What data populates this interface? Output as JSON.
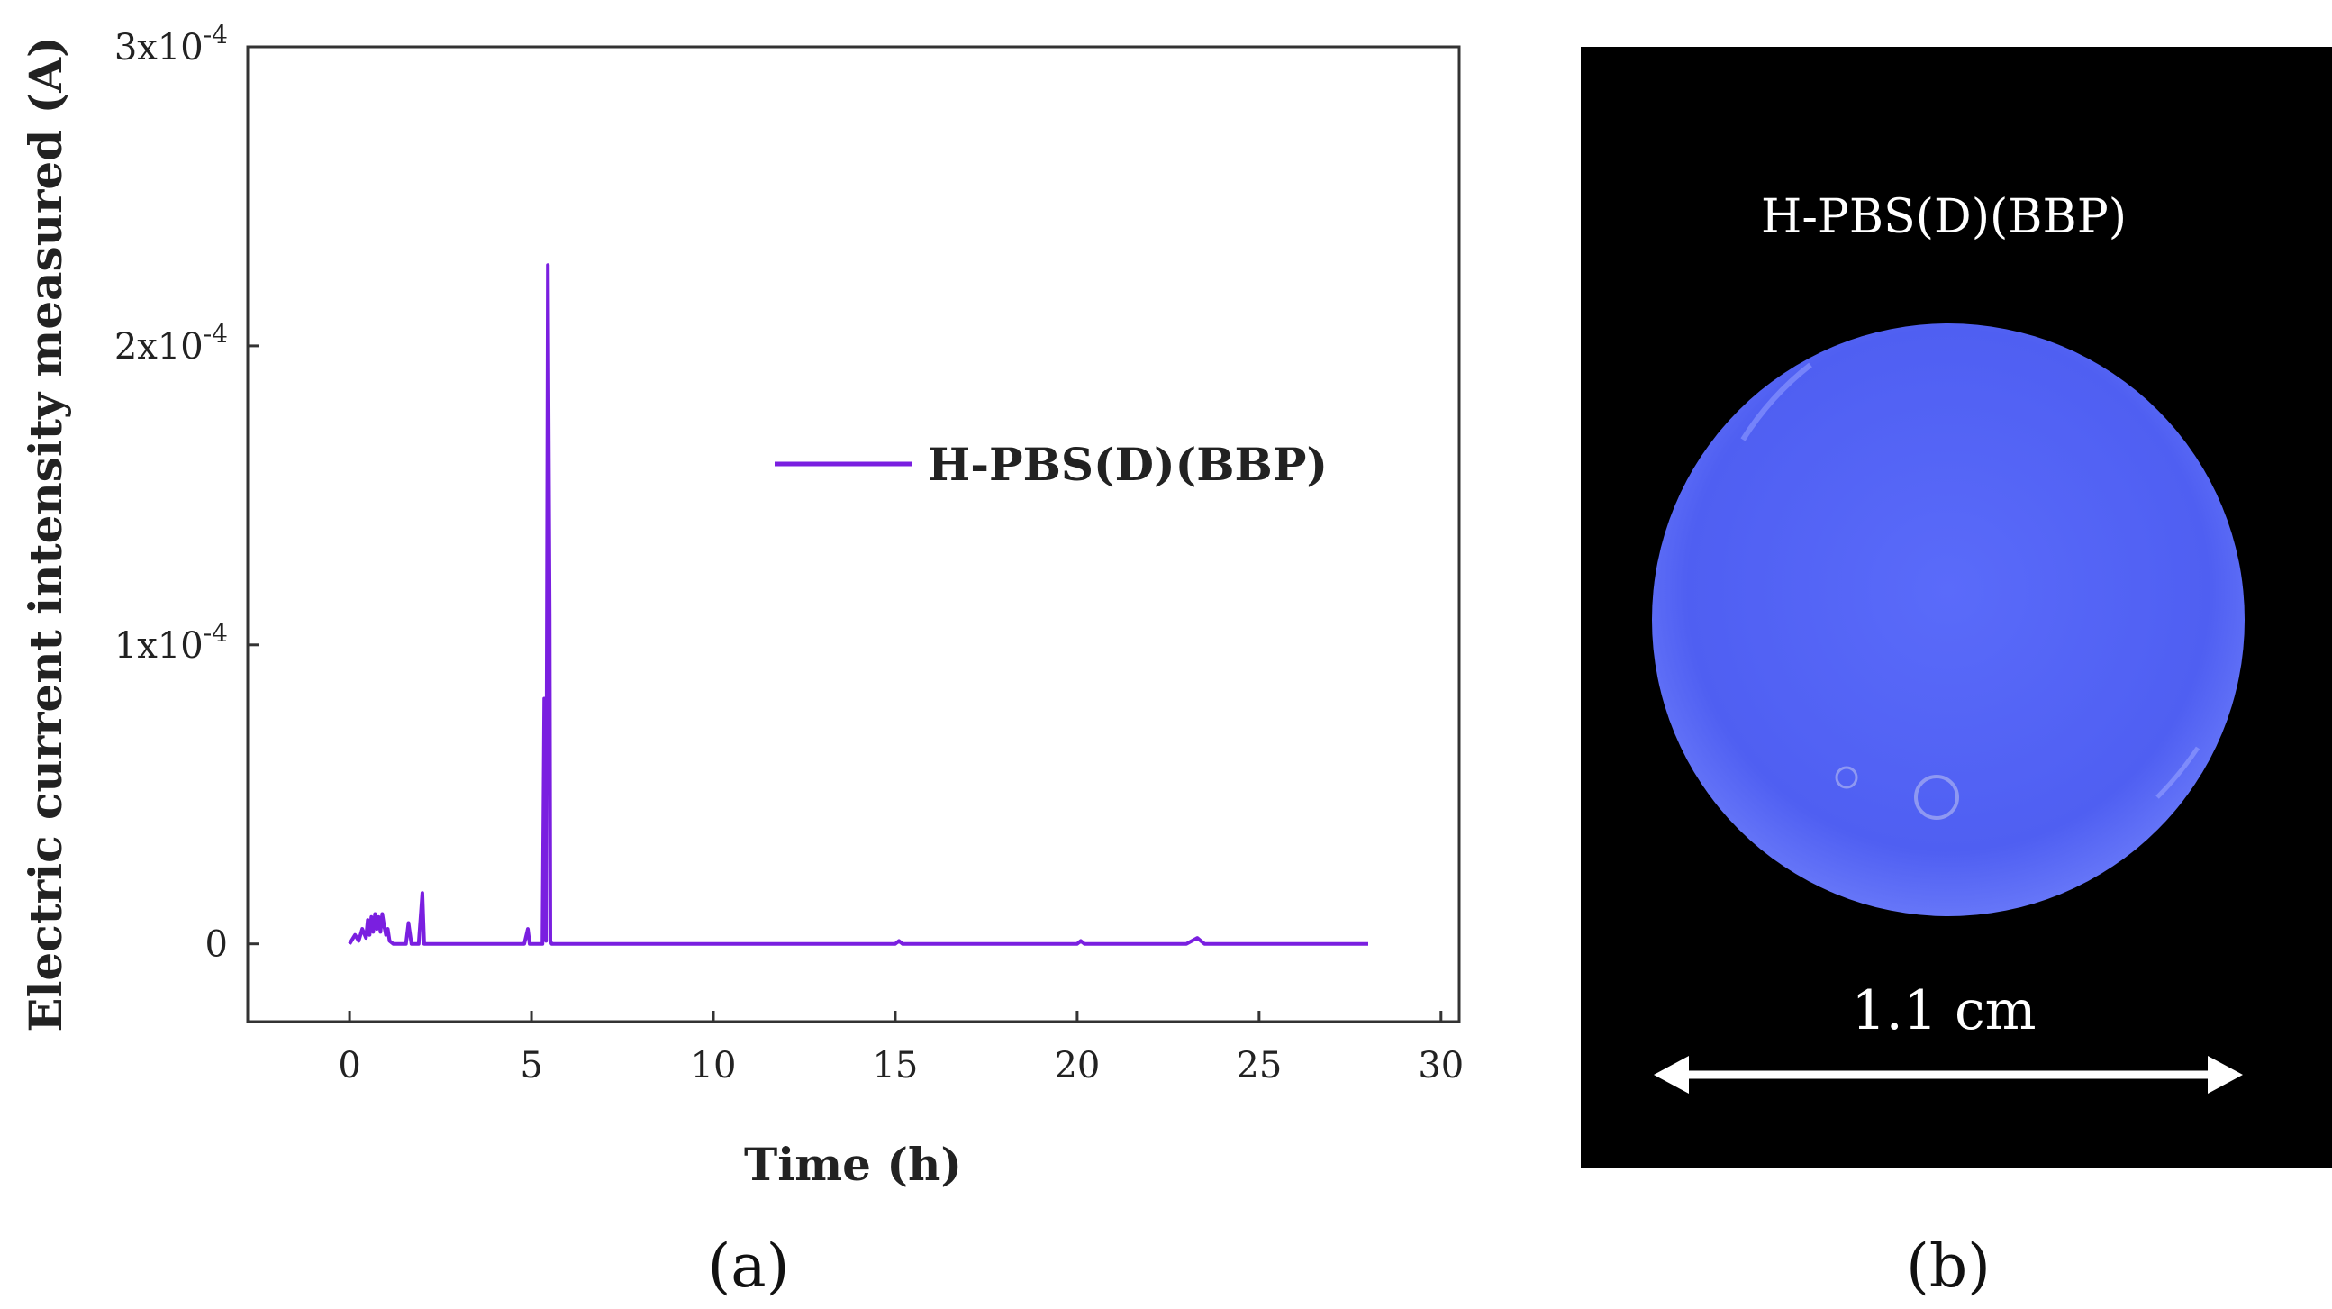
{
  "chart_data": {
    "type": "line",
    "xlabel": "Time (h)",
    "ylabel": "Electric current intensity measured (A)",
    "xlim": [
      -2.8,
      30.5
    ],
    "ylim": [
      -2.6e-05,
      0.0003
    ],
    "xticks": [
      0,
      5,
      10,
      15,
      20,
      25,
      30
    ],
    "xtick_labels": [
      "0",
      "5",
      "10",
      "15",
      "20",
      "25",
      "30"
    ],
    "yticks": [
      0,
      0.0001,
      0.0002,
      0.0003
    ],
    "ytick_labels": [
      {
        "mantissa": "0",
        "exp": ""
      },
      {
        "mantissa": "1x10",
        "exp": "-4"
      },
      {
        "mantissa": "2x10",
        "exp": "-4"
      },
      {
        "mantissa": "3x10",
        "exp": "-4"
      }
    ],
    "legend_position": "upper-center",
    "series": [
      {
        "name": "H-PBS(D)(BBP)",
        "color": "#7a1fe0",
        "x": [
          0.0,
          0.15,
          0.25,
          0.35,
          0.45,
          0.5,
          0.55,
          0.6,
          0.65,
          0.7,
          0.75,
          0.8,
          0.85,
          0.9,
          0.95,
          1.0,
          1.05,
          1.1,
          1.2,
          1.4,
          1.55,
          1.62,
          1.7,
          1.8,
          1.9,
          2.0,
          2.05,
          2.1,
          3.0,
          4.0,
          4.8,
          4.9,
          4.95,
          5.1,
          5.3,
          5.35,
          5.4,
          5.45,
          5.5,
          5.52,
          5.55,
          5.6,
          7.0,
          10.0,
          15.0,
          15.1,
          15.2,
          20.0,
          20.1,
          20.2,
          23.0,
          23.3,
          23.4,
          23.5,
          25.0,
          28.0
        ],
        "y": [
          0.0,
          3e-06,
          1e-06,
          5e-06,
          2e-06,
          8e-06,
          3e-06,
          9e-06,
          4e-06,
          1e-05,
          5e-06,
          9e-06,
          4e-06,
          1e-05,
          6e-06,
          3e-06,
          5e-06,
          1e-06,
          0.0,
          0.0,
          0.0,
          7e-06,
          0.0,
          0.0,
          0.0,
          1.7e-05,
          0.0,
          0.0,
          0.0,
          0.0,
          0.0,
          5e-06,
          0.0,
          0.0,
          0.0,
          8.2e-05,
          1e-06,
          0.000227,
          0.00011,
          1e-06,
          0.0,
          0.0,
          0.0,
          0.0,
          0.0,
          1e-06,
          0.0,
          0.0,
          1e-06,
          0.0,
          0.0,
          2e-06,
          1e-06,
          0.0,
          0.0,
          0.0
        ]
      }
    ]
  },
  "panel_labels": {
    "a": "(a)",
    "b": "(b)"
  },
  "photo": {
    "title": "H-PBS(D)(BBP)",
    "scale_label": "1.1 cm",
    "background_color": "#000000",
    "disc_color": "#5060f6"
  }
}
